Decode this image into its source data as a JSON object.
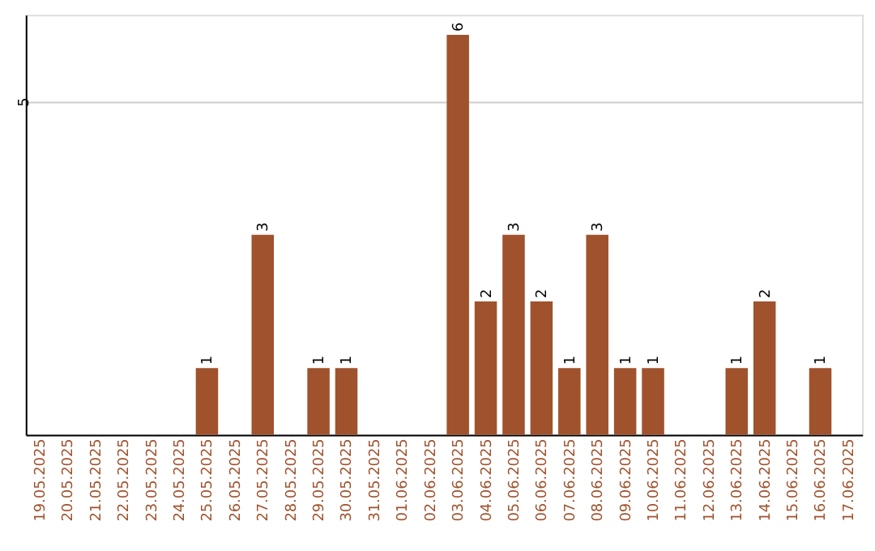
{
  "chart_data": {
    "type": "bar",
    "categories": [
      "19.05.2025",
      "20.05.2025",
      "21.05.2025",
      "22.05.2025",
      "23.05.2025",
      "24.05.2025",
      "25.05.2025",
      "26.05.2025",
      "27.05.2025",
      "28.05.2025",
      "29.05.2025",
      "30.05.2025",
      "31.05.2025",
      "01.06.2025",
      "02.06.2025",
      "03.06.2025",
      "04.06.2025",
      "05.06.2025",
      "06.06.2025",
      "07.06.2025",
      "08.06.2025",
      "09.06.2025",
      "10.06.2025",
      "11.06.2025",
      "12.06.2025",
      "13.06.2025",
      "14.06.2025",
      "15.06.2025",
      "16.06.2025",
      "17.06.2025"
    ],
    "values": [
      0,
      0,
      0,
      0,
      0,
      0,
      1,
      0,
      3,
      0,
      1,
      1,
      0,
      0,
      0,
      6,
      2,
      3,
      2,
      1,
      3,
      1,
      1,
      0,
      0,
      1,
      2,
      0,
      1,
      0
    ],
    "value_labels": [
      null,
      null,
      null,
      null,
      null,
      null,
      "1",
      null,
      "3",
      null,
      "1",
      "1",
      null,
      null,
      null,
      "6",
      "2",
      "3",
      "2",
      "1",
      "3",
      "1",
      "1",
      null,
      null,
      "1",
      "2",
      null,
      "1",
      null
    ],
    "color": "#a0522d",
    "ylim": [
      0,
      6.3
    ],
    "yticks": [
      5
    ],
    "grid": "y"
  }
}
